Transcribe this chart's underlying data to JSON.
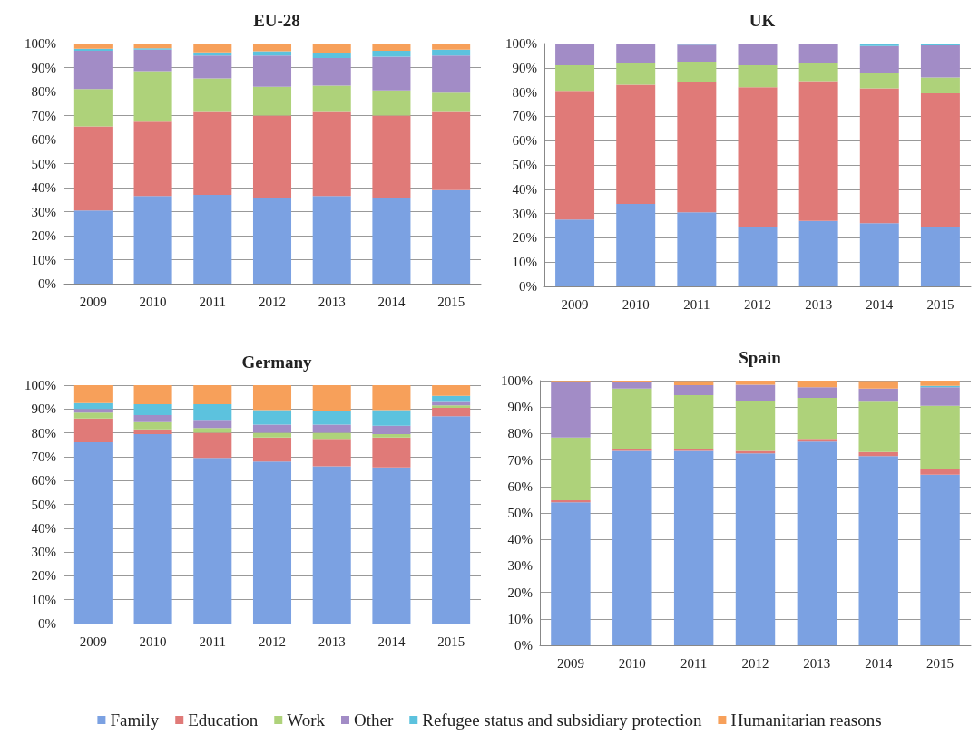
{
  "chart_data": [
    {
      "type": "bar",
      "title": "EU-28",
      "stacked": true,
      "grid": "y",
      "categories": [
        "2009",
        "2010",
        "2011",
        "2012",
        "2013",
        "2014",
        "2015"
      ],
      "ylim": [
        0,
        100
      ],
      "yticks": [
        {
          "value": 0,
          "label": "0%"
        },
        {
          "value": 10,
          "label": "10%"
        },
        {
          "value": 20,
          "label": "20%"
        },
        {
          "value": 30,
          "label": "30%"
        },
        {
          "value": 40,
          "label": "40%"
        },
        {
          "value": 50,
          "label": "50%"
        },
        {
          "value": 60,
          "label": "60%"
        },
        {
          "value": 70,
          "label": "70%"
        },
        {
          "value": 80,
          "label": "80%"
        },
        {
          "value": 90,
          "label": "90%"
        },
        {
          "value": 100,
          "label": "100%"
        }
      ],
      "series": [
        {
          "color": "#7ba1e2",
          "values": [
            30.5,
            36.5,
            37,
            35.5,
            36.5,
            35.5,
            39
          ]
        },
        {
          "color": "#e07a78",
          "values": [
            35,
            31,
            34.5,
            34.5,
            35,
            34.5,
            32.5
          ]
        },
        {
          "color": "#aed27a",
          "values": [
            15.5,
            21,
            14,
            12,
            11,
            10.5,
            8
          ]
        },
        {
          "color": "#a28cc6",
          "values": [
            16,
            9,
            9.5,
            13,
            11.5,
            14,
            15.5
          ]
        },
        {
          "color": "#5cc2de",
          "values": [
            0.8,
            0.5,
            1.3,
            1.8,
            2,
            2.5,
            2.5
          ]
        },
        {
          "color": "#f7a05a",
          "values": [
            2.2,
            2,
            3.7,
            3.2,
            4,
            3,
            2.5
          ]
        }
      ]
    },
    {
      "type": "bar",
      "title": "UK",
      "stacked": true,
      "grid": "y",
      "categories": [
        "2009",
        "2010",
        "2011",
        "2012",
        "2013",
        "2014",
        "2015"
      ],
      "ylim": [
        0,
        100
      ],
      "yticks": [
        {
          "value": 0,
          "label": "0%"
        },
        {
          "value": 10,
          "label": "10%"
        },
        {
          "value": 20,
          "label": "20%"
        },
        {
          "value": 30,
          "label": "30%"
        },
        {
          "value": 40,
          "label": "40%"
        },
        {
          "value": 50,
          "label": "50%"
        },
        {
          "value": 60,
          "label": "60%"
        },
        {
          "value": 70,
          "label": "70%"
        },
        {
          "value": 80,
          "label": "80%"
        },
        {
          "value": 90,
          "label": "90%"
        },
        {
          "value": 100,
          "label": "100%"
        }
      ],
      "series": [
        {
          "color": "#7ba1e2",
          "values": [
            27.5,
            34,
            30.5,
            24.5,
            27,
            26,
            24.5
          ]
        },
        {
          "color": "#e07a78",
          "values": [
            53,
            49,
            53.5,
            57.5,
            57.5,
            55.5,
            55
          ]
        },
        {
          "color": "#aed27a",
          "values": [
            10.5,
            9,
            8.5,
            9,
            7.5,
            6.5,
            6.5
          ]
        },
        {
          "color": "#a28cc6",
          "values": [
            8.7,
            7.7,
            7,
            8.7,
            7.7,
            11,
            13.3
          ]
        },
        {
          "color": "#5cc2de",
          "values": [
            0,
            0,
            0.5,
            0,
            0,
            0.7,
            0.3
          ]
        },
        {
          "color": "#f7a05a",
          "values": [
            0.3,
            0.3,
            0,
            0.3,
            0.3,
            0.3,
            0.4
          ]
        }
      ]
    },
    {
      "type": "bar",
      "title": "Germany",
      "stacked": true,
      "grid": "y",
      "categories": [
        "2009",
        "2010",
        "2011",
        "2012",
        "2013",
        "2014",
        "2015"
      ],
      "ylim": [
        0,
        100
      ],
      "yticks": [
        {
          "value": 0,
          "label": "0%"
        },
        {
          "value": 10,
          "label": "10%"
        },
        {
          "value": 20,
          "label": "20%"
        },
        {
          "value": 30,
          "label": "30%"
        },
        {
          "value": 40,
          "label": "40%"
        },
        {
          "value": 50,
          "label": "50%"
        },
        {
          "value": 60,
          "label": "60%"
        },
        {
          "value": 70,
          "label": "70%"
        },
        {
          "value": 80,
          "label": "80%"
        },
        {
          "value": 90,
          "label": "90%"
        },
        {
          "value": 100,
          "label": "100%"
        }
      ],
      "series": [
        {
          "color": "#7ba1e2",
          "values": [
            76,
            79.5,
            69.5,
            68,
            66,
            65.5,
            87
          ]
        },
        {
          "color": "#e07a78",
          "values": [
            10,
            2,
            10.5,
            10,
            11.5,
            12.5,
            3.5
          ]
        },
        {
          "color": "#aed27a",
          "values": [
            2.5,
            3,
            2,
            2,
            2.5,
            1.5,
            1
          ]
        },
        {
          "color": "#a28cc6",
          "values": [
            1.5,
            3,
            3.5,
            3.5,
            3.5,
            3.5,
            1.5
          ]
        },
        {
          "color": "#5cc2de",
          "values": [
            2.5,
            4.5,
            6.5,
            6,
            5.5,
            6.5,
            2.5
          ]
        },
        {
          "color": "#f7a05a",
          "values": [
            7.5,
            8,
            8,
            10.5,
            11,
            10.5,
            4.5
          ]
        }
      ]
    },
    {
      "type": "bar",
      "title": "Spain",
      "stacked": true,
      "grid": "y",
      "legend": "bottom",
      "categories": [
        "2009",
        "2010",
        "2011",
        "2012",
        "2013",
        "2014",
        "2015"
      ],
      "ylim": [
        0,
        100
      ],
      "yticks": [
        {
          "value": 0,
          "label": "0%"
        },
        {
          "value": 10,
          "label": "10%"
        },
        {
          "value": 20,
          "label": "20%"
        },
        {
          "value": 30,
          "label": "30%"
        },
        {
          "value": 40,
          "label": "40%"
        },
        {
          "value": 50,
          "label": "50%"
        },
        {
          "value": 60,
          "label": "60%"
        },
        {
          "value": 70,
          "label": "70%"
        },
        {
          "value": 80,
          "label": "80%"
        },
        {
          "value": 90,
          "label": "90%"
        },
        {
          "value": 100,
          "label": "100%"
        }
      ],
      "series": [
        {
          "name": "Family",
          "color": "#7ba1e2",
          "values": [
            54,
            73.5,
            73.5,
            72.5,
            77,
            71.5,
            64.5
          ]
        },
        {
          "name": "Education",
          "color": "#e07a78",
          "values": [
            0.8,
            0.8,
            0.8,
            1,
            1,
            1.5,
            2
          ]
        },
        {
          "name": "Work",
          "color": "#aed27a",
          "values": [
            23.7,
            22.7,
            20.2,
            19,
            15.5,
            19,
            24
          ]
        },
        {
          "name": "Other",
          "color": "#a28cc6",
          "values": [
            21,
            2.3,
            3.8,
            6,
            4,
            5,
            7
          ]
        },
        {
          "name": "Refugee status and subsidiary protection",
          "color": "#5cc2de",
          "values": [
            null,
            0,
            null,
            0,
            0,
            null,
            0.5
          ]
        },
        {
          "name": "Humanitarian reasons",
          "color": "#f7a05a",
          "values": [
            0.4,
            0.7,
            1.5,
            1.5,
            2.5,
            2.8,
            2
          ]
        }
      ]
    }
  ]
}
